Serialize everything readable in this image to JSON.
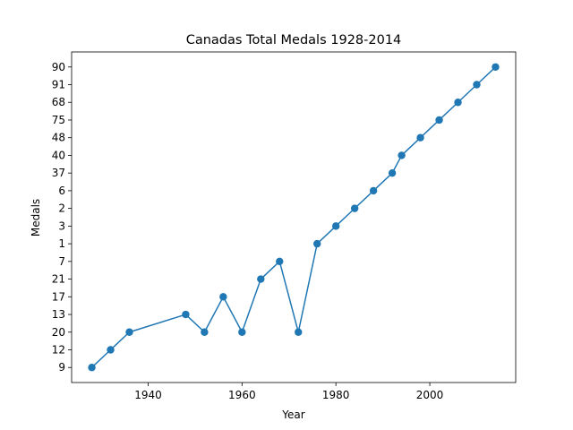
{
  "chart_data": {
    "type": "line",
    "title": "Canadas Total Medals 1928-2014",
    "xlabel": "Year",
    "ylabel": "Medals",
    "xlim": [
      1923.7,
      2018.3
    ],
    "x_ticks": [
      1940,
      1960,
      1980,
      2000
    ],
    "y_categories": [
      "9",
      "12",
      "20",
      "13",
      "17",
      "21",
      "7",
      "1",
      "3",
      "2",
      "6",
      "37",
      "40",
      "48",
      "75",
      "68",
      "91",
      "90"
    ],
    "series": [
      {
        "color": "#1f77b4",
        "marker": "circle",
        "points": [
          {
            "x": 1928,
            "y": "9"
          },
          {
            "x": 1932,
            "y": "12"
          },
          {
            "x": 1936,
            "y": "20"
          },
          {
            "x": 1948,
            "y": "13"
          },
          {
            "x": 1952,
            "y": "20"
          },
          {
            "x": 1956,
            "y": "17"
          },
          {
            "x": 1960,
            "y": "20"
          },
          {
            "x": 1964,
            "y": "21"
          },
          {
            "x": 1968,
            "y": "7"
          },
          {
            "x": 1972,
            "y": "20"
          },
          {
            "x": 1976,
            "y": "1"
          },
          {
            "x": 1980,
            "y": "3"
          },
          {
            "x": 1984,
            "y": "2"
          },
          {
            "x": 1988,
            "y": "6"
          },
          {
            "x": 1992,
            "y": "37"
          },
          {
            "x": 1994,
            "y": "40"
          },
          {
            "x": 1998,
            "y": "48"
          },
          {
            "x": 2002,
            "y": "75"
          },
          {
            "x": 2006,
            "y": "68"
          },
          {
            "x": 2010,
            "y": "91"
          },
          {
            "x": 2014,
            "y": "90"
          }
        ]
      }
    ],
    "grid": false,
    "legend": "none"
  }
}
